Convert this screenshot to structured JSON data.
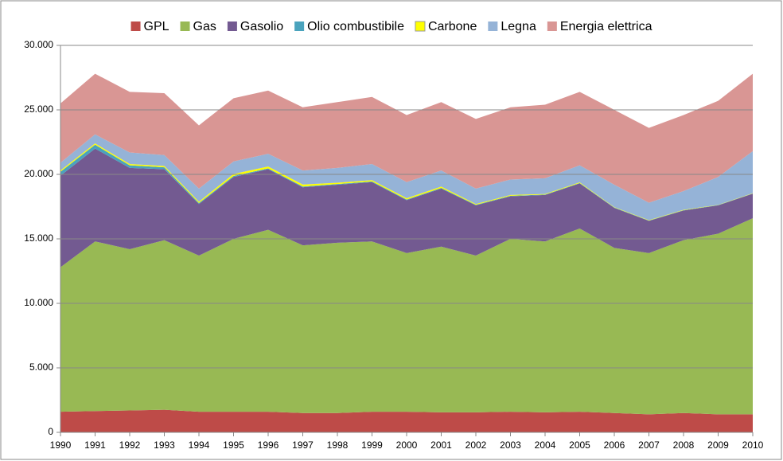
{
  "chart_data": {
    "type": "stacked-area",
    "categories": [
      "1990",
      "1991",
      "1992",
      "1993",
      "1994",
      "1995",
      "1996",
      "1997",
      "1998",
      "1999",
      "2000",
      "2001",
      "2002",
      "2003",
      "2004",
      "2005",
      "2006",
      "2007",
      "2008",
      "2009",
      "2010"
    ],
    "series": [
      {
        "name": "GPL",
        "color": "#be4b48",
        "values": [
          1600,
          1650,
          1700,
          1750,
          1600,
          1600,
          1600,
          1500,
          1500,
          1600,
          1600,
          1550,
          1550,
          1600,
          1550,
          1600,
          1500,
          1400,
          1500,
          1400,
          1400
        ]
      },
      {
        "name": "Gas",
        "color": "#98b954",
        "values": [
          11200,
          13150,
          12500,
          13150,
          12100,
          13400,
          14100,
          13000,
          13200,
          13200,
          12300,
          12850,
          12150,
          13400,
          13250,
          14200,
          12800,
          12500,
          13400,
          14000,
          15200
        ]
      },
      {
        "name": "Gasolio",
        "color": "#735a91",
        "values": [
          7100,
          7200,
          6300,
          5500,
          4000,
          4800,
          4700,
          4500,
          4500,
          4600,
          4100,
          4500,
          3900,
          3300,
          3600,
          3500,
          3100,
          2500,
          2300,
          2200,
          1900
        ]
      },
      {
        "name": "Olio combustibile",
        "color": "#4aa3bd",
        "values": [
          300,
          300,
          200,
          150,
          80,
          80,
          60,
          60,
          50,
          50,
          50,
          50,
          40,
          40,
          30,
          30,
          30,
          20,
          20,
          20,
          20
        ]
      },
      {
        "name": "Carbone",
        "color": "#ffff00",
        "values": [
          100,
          100,
          100,
          100,
          100,
          150,
          150,
          150,
          100,
          100,
          100,
          100,
          60,
          60,
          50,
          50,
          30,
          30,
          30,
          20,
          20
        ]
      },
      {
        "name": "Legna",
        "color": "#95b3d7",
        "values": [
          600,
          700,
          900,
          850,
          1020,
          970,
          990,
          1090,
          1150,
          1250,
          1250,
          1250,
          1200,
          1200,
          1220,
          1320,
          1740,
          1350,
          1450,
          2160,
          3260
        ]
      },
      {
        "name": "Energia elettrica",
        "color": "#d99694",
        "values": [
          4600,
          4700,
          4700,
          4800,
          4900,
          4900,
          4900,
          4900,
          5100,
          5200,
          5200,
          5300,
          5400,
          5600,
          5700,
          5700,
          5800,
          5800,
          5900,
          5900,
          6000
        ]
      }
    ],
    "ylim": [
      0,
      30000
    ],
    "yticks": [
      0,
      {
        "value": 5000,
        "label": "5.000"
      },
      {
        "value": 10000,
        "label": "10.000"
      },
      {
        "value": 15000,
        "label": "15.000"
      },
      {
        "value": 20000,
        "label": "20.000"
      },
      {
        "value": 25000,
        "label": "25.000"
      },
      {
        "value": 30000,
        "label": "30.000"
      }
    ],
    "grid": true,
    "legend": "top"
  }
}
